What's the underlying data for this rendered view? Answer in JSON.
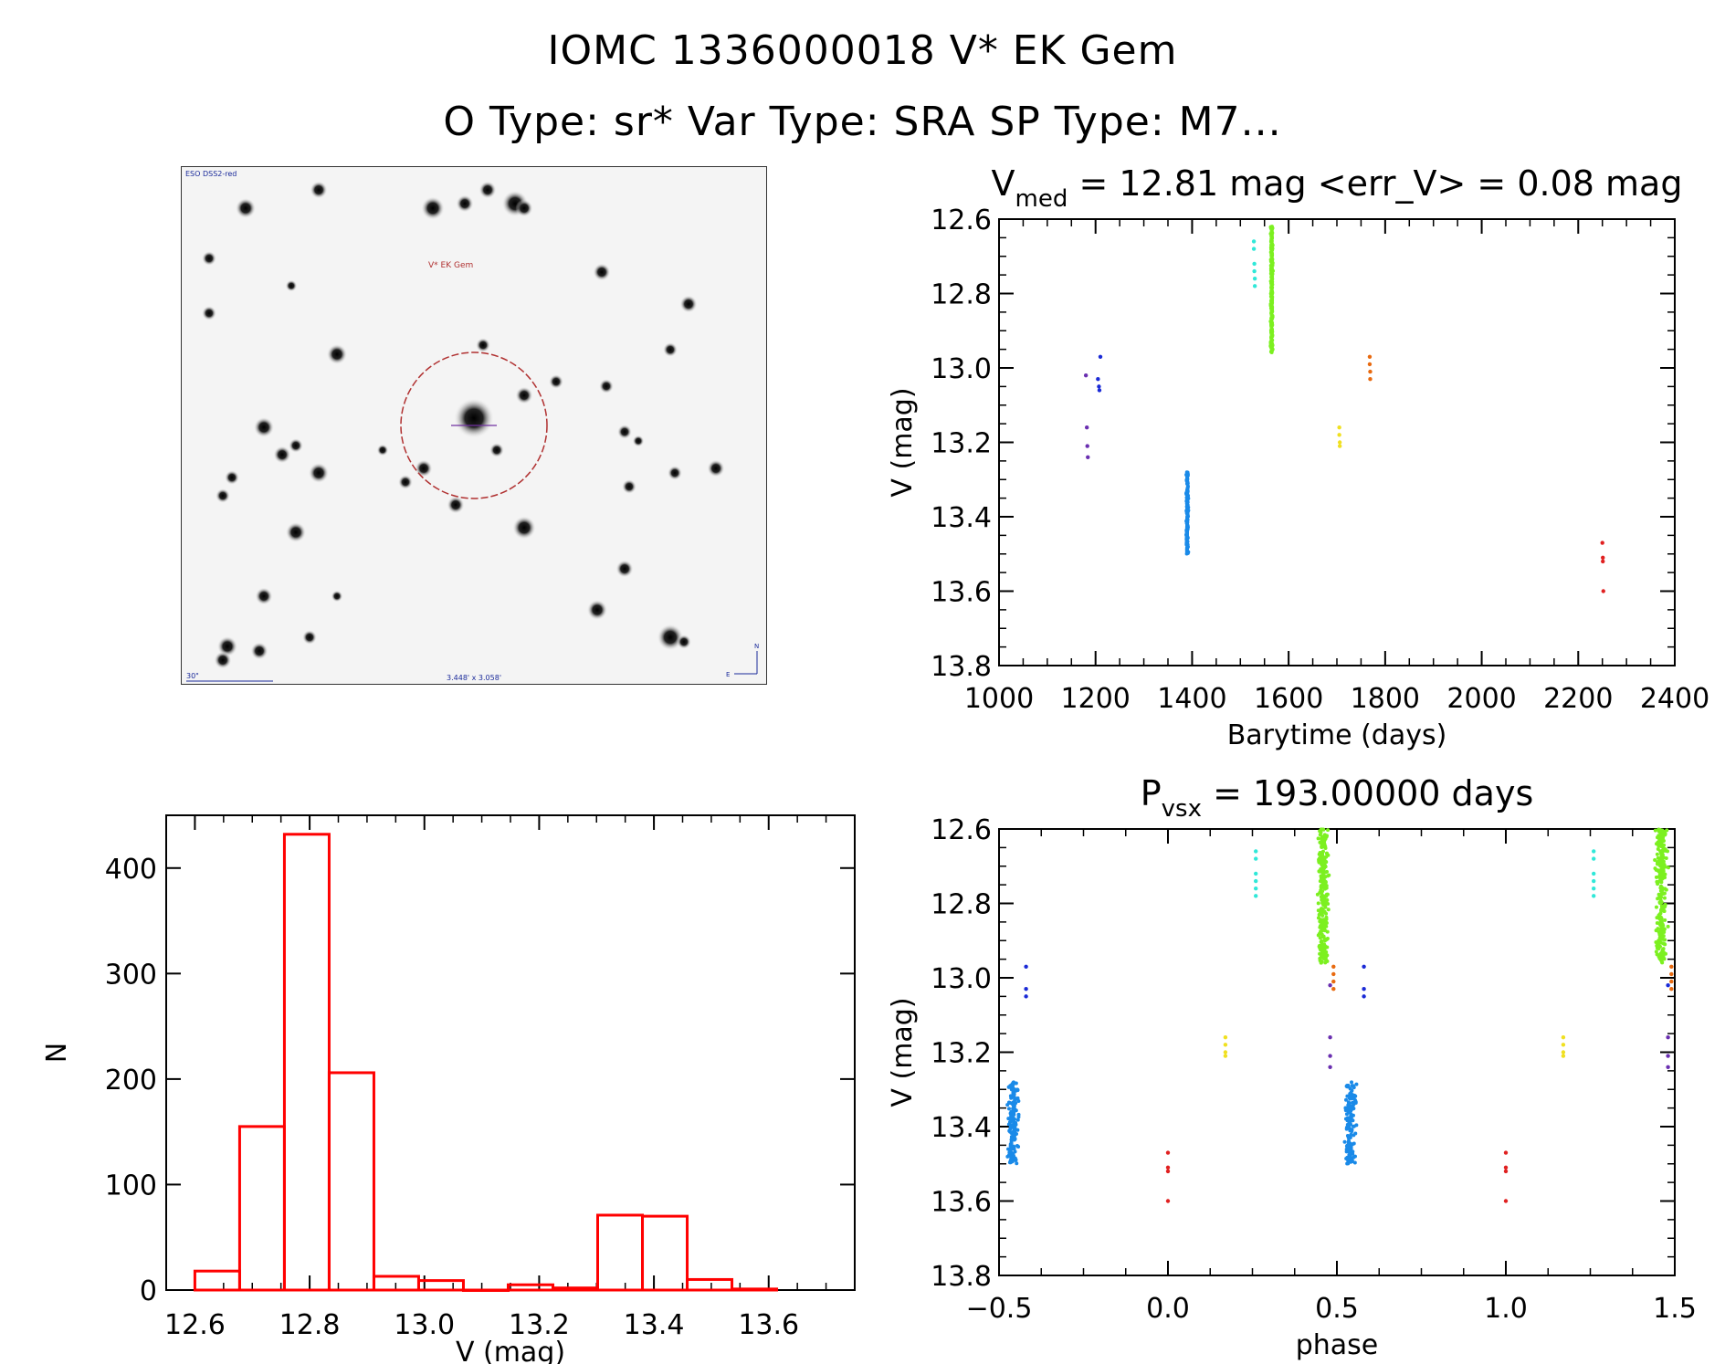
{
  "header": {
    "title_line1": "IOMC 1336000018   V* EK Gem",
    "title_line2": "O Type: sr*  Var Type: SRA  SP Type: M7..."
  },
  "finder": {
    "survey_label": "ESO DSS2-red",
    "target_label": "V* EK Gem",
    "scale_label": "30\"",
    "fov_label": "3.448' x 3.058'",
    "north_label": "N",
    "east_label": "E"
  },
  "colors": {
    "purple": "#6a2fb0",
    "blue": "#1a2ad6",
    "azure": "#1a8ae8",
    "cyan": "#30e8d8",
    "green": "#7cf020",
    "yellow": "#f0e020",
    "orange": "#e86a10",
    "red": "#e02020",
    "hist": "#ff0000"
  },
  "chart_data": [
    {
      "id": "lightcurve",
      "type": "scatter",
      "title_main": "V",
      "title_sub": "med",
      "title_rest": " =  12.81 mag <err_V> =  0.08 mag",
      "xlabel": "Barytime (days)",
      "ylabel": "V (mag)",
      "xlim": [
        1000,
        2400
      ],
      "ylim": [
        12.6,
        13.8
      ],
      "y_inverted": true,
      "xticks": [
        1000,
        1200,
        1400,
        1600,
        1800,
        2000,
        2200,
        2400
      ],
      "yticks": [
        12.6,
        12.8,
        13.0,
        13.2,
        13.4,
        13.6,
        13.8
      ],
      "ytick_labels": [
        "12.6",
        "12.8",
        "13.0",
        "13.2",
        "13.4",
        "13.6",
        "13.8"
      ],
      "series": [
        {
          "name": "purple",
          "color": "purple",
          "points": [
            [
              1180,
              13.02
            ],
            [
              1182,
              13.16
            ],
            [
              1183,
              13.21
            ],
            [
              1184,
              13.24
            ]
          ]
        },
        {
          "name": "blue",
          "color": "blue",
          "points": [
            [
              1205,
              13.03
            ],
            [
              1207,
              13.05
            ],
            [
              1208,
              13.06
            ],
            [
              1210,
              12.97
            ]
          ]
        },
        {
          "name": "azure",
          "color": "azure",
          "clusters": [
            {
              "x": 1390,
              "xs": 4,
              "y0": 13.28,
              "y1": 13.5,
              "n": 160
            }
          ]
        },
        {
          "name": "cyan",
          "color": "cyan",
          "points": [
            [
              1528,
              12.66
            ],
            [
              1528,
              12.68
            ],
            [
              1529,
              12.72
            ],
            [
              1529,
              12.74
            ],
            [
              1530,
              12.76
            ],
            [
              1530,
              12.78
            ]
          ]
        },
        {
          "name": "green",
          "color": "green",
          "clusters": [
            {
              "x": 1565,
              "xs": 4,
              "y0": 12.62,
              "y1": 12.96,
              "n": 260
            }
          ]
        },
        {
          "name": "yellow",
          "color": "yellow",
          "points": [
            [
              1705,
              13.16
            ],
            [
              1705,
              13.18
            ],
            [
              1706,
              13.2
            ],
            [
              1706,
              13.21
            ]
          ]
        },
        {
          "name": "orange",
          "color": "orange",
          "points": [
            [
              1768,
              12.97
            ],
            [
              1768,
              12.99
            ],
            [
              1769,
              13.01
            ],
            [
              1769,
              13.03
            ]
          ]
        },
        {
          "name": "red",
          "color": "red",
          "points": [
            [
              2250,
              13.47
            ],
            [
              2251,
              13.51
            ],
            [
              2251,
              13.52
            ],
            [
              2252,
              13.6
            ]
          ]
        }
      ]
    },
    {
      "id": "phased",
      "type": "scatter",
      "title_main": "P",
      "title_sub": "vsx",
      "title_rest": " =  193.00000 days",
      "xlabel": "phase",
      "ylabel": "V (mag)",
      "xlim": [
        -0.5,
        1.5
      ],
      "ylim": [
        12.6,
        13.8
      ],
      "y_inverted": true,
      "xticks": [
        -0.5,
        0.0,
        0.5,
        1.0,
        1.5
      ],
      "xtick_labels": [
        "−0.5",
        "0.0",
        "0.5",
        "1.0",
        "1.5"
      ],
      "yticks": [
        12.6,
        12.8,
        13.0,
        13.2,
        13.4,
        13.6,
        13.8
      ],
      "ytick_labels": [
        "12.6",
        "12.8",
        "13.0",
        "13.2",
        "13.4",
        "13.6",
        "13.8"
      ],
      "series": [
        {
          "name": "azure",
          "color": "azure",
          "clusters": [
            {
              "x": -0.46,
              "xs": 0.03,
              "y0": 13.28,
              "y1": 13.5,
              "n": 160
            },
            {
              "x": 0.54,
              "xs": 0.03,
              "y0": 13.28,
              "y1": 13.5,
              "n": 160
            }
          ]
        },
        {
          "name": "green",
          "color": "green",
          "clusters": [
            {
              "x": 0.46,
              "xs": 0.03,
              "y0": 12.6,
              "y1": 12.96,
              "n": 260
            },
            {
              "x": 1.46,
              "xs": 0.03,
              "y0": 12.6,
              "y1": 12.96,
              "n": 260
            }
          ]
        },
        {
          "name": "blue",
          "color": "blue",
          "points": [
            [
              -0.42,
              12.97
            ],
            [
              -0.42,
              13.03
            ],
            [
              -0.42,
              13.05
            ],
            [
              0.58,
              12.97
            ],
            [
              0.58,
              13.03
            ],
            [
              0.58,
              13.05
            ],
            [
              1.48,
              13.02
            ]
          ]
        },
        {
          "name": "purple",
          "color": "purple",
          "points": [
            [
              0.48,
              13.02
            ],
            [
              0.48,
              13.16
            ],
            [
              0.48,
              13.21
            ],
            [
              0.48,
              13.24
            ],
            [
              1.48,
              13.16
            ],
            [
              1.48,
              13.21
            ],
            [
              1.48,
              13.24
            ]
          ]
        },
        {
          "name": "red",
          "color": "red",
          "points": [
            [
              0.0,
              13.47
            ],
            [
              0.0,
              13.51
            ],
            [
              0.0,
              13.52
            ],
            [
              0.0,
              13.6
            ],
            [
              1.0,
              13.47
            ],
            [
              1.0,
              13.51
            ],
            [
              1.0,
              13.52
            ],
            [
              1.0,
              13.6
            ]
          ]
        },
        {
          "name": "yellow",
          "color": "yellow",
          "points": [
            [
              0.17,
              13.16
            ],
            [
              0.17,
              13.18
            ],
            [
              0.17,
              13.2
            ],
            [
              0.17,
              13.21
            ],
            [
              1.17,
              13.16
            ],
            [
              1.17,
              13.18
            ],
            [
              1.17,
              13.2
            ],
            [
              1.17,
              13.21
            ]
          ]
        },
        {
          "name": "cyan",
          "color": "cyan",
          "points": [
            [
              0.26,
              12.66
            ],
            [
              0.26,
              12.68
            ],
            [
              0.26,
              12.72
            ],
            [
              0.26,
              12.74
            ],
            [
              0.26,
              12.76
            ],
            [
              0.26,
              12.78
            ],
            [
              1.26,
              12.66
            ],
            [
              1.26,
              12.68
            ],
            [
              1.26,
              12.72
            ],
            [
              1.26,
              12.74
            ],
            [
              1.26,
              12.76
            ],
            [
              1.26,
              12.78
            ]
          ]
        },
        {
          "name": "orange",
          "color": "orange",
          "points": [
            [
              0.49,
              12.97
            ],
            [
              0.49,
              12.99
            ],
            [
              0.49,
              13.01
            ],
            [
              0.49,
              13.03
            ],
            [
              1.49,
              12.97
            ],
            [
              1.49,
              12.99
            ],
            [
              1.49,
              13.01
            ],
            [
              1.49,
              13.03
            ]
          ]
        }
      ]
    },
    {
      "id": "histogram",
      "type": "bar",
      "xlabel": "V (mag)",
      "ylabel": "N",
      "xlim": [
        12.55,
        13.75
      ],
      "ylim": [
        0,
        450
      ],
      "xticks": [
        12.6,
        12.8,
        13.0,
        13.2,
        13.4,
        13.6
      ],
      "xtick_labels": [
        "12.6",
        "12.8",
        "13.0",
        "13.2",
        "13.4",
        "13.6"
      ],
      "yticks": [
        0,
        100,
        200,
        300,
        400
      ],
      "ytick_labels": [
        "0",
        "100",
        "200",
        "300",
        "400"
      ],
      "bin_width": 0.078,
      "bin_starts": [
        12.6,
        12.678,
        12.756,
        12.834,
        12.912,
        12.99,
        13.068,
        13.146,
        13.224,
        13.302,
        13.38,
        13.458,
        13.536
      ],
      "values": [
        18,
        155,
        432,
        206,
        13,
        9,
        0,
        5,
        2,
        71,
        70,
        10,
        1
      ]
    }
  ]
}
